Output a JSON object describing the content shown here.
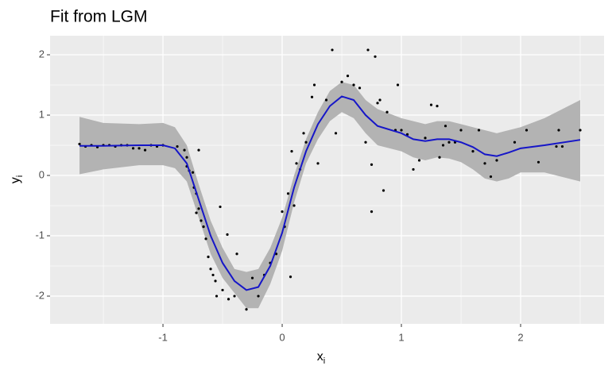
{
  "chart_data": {
    "type": "scatter-fit",
    "title": "Fit from LGM",
    "x_label": {
      "text": "x",
      "subscript": "i"
    },
    "y_label": {
      "text": "y",
      "subscript": "i"
    },
    "xlim": [
      -1.947,
      2.7
    ],
    "ylim": [
      -2.46,
      2.316
    ],
    "xticks": [
      -1,
      0,
      1,
      2
    ],
    "yticks": [
      -2,
      -1,
      0,
      1,
      2
    ],
    "grid": true,
    "points": {
      "color": "#000000",
      "x": [
        -1.7,
        -1.65,
        -1.6,
        -1.55,
        -1.5,
        -1.45,
        -1.4,
        -1.35,
        -1.3,
        -1.25,
        -1.2,
        -1.15,
        -1.1,
        -1.05,
        -1.0,
        -0.88,
        -0.82,
        -0.8,
        -0.8,
        -0.78,
        -0.75,
        -0.74,
        -0.72,
        -0.7,
        -0.72,
        -0.68,
        -0.7,
        -0.66,
        -0.64,
        -0.62,
        -0.6,
        -0.58,
        -0.56,
        -0.55,
        -0.52,
        -0.5,
        -0.46,
        -0.45,
        -0.4,
        -0.38,
        -0.3,
        -0.25,
        -0.2,
        -0.15,
        -0.1,
        -0.05,
        0,
        0.02,
        0.05,
        0.07,
        0.08,
        0.1,
        0.12,
        0.15,
        0.18,
        0.2,
        0.25,
        0.27,
        0.3,
        0.37,
        0.42,
        0.45,
        0.5,
        0.55,
        0.6,
        0.65,
        0.7,
        0.72,
        0.75,
        0.78,
        0.75,
        0.8,
        0.82,
        0.85,
        0.88,
        0.95,
        0.97,
        1.0,
        1.05,
        1.1,
        1.15,
        1.2,
        1.25,
        1.3,
        1.32,
        1.35,
        1.37,
        1.4,
        1.45,
        1.5,
        1.6,
        1.65,
        1.7,
        1.75,
        1.8,
        1.95,
        2.05,
        2.15,
        2.3,
        2.32,
        2.35,
        2.5
      ],
      "y": [
        0.52,
        0.48,
        0.5,
        0.47,
        0.5,
        0.5,
        0.48,
        0.5,
        0.5,
        0.45,
        0.45,
        0.42,
        0.5,
        0.48,
        0.5,
        0.48,
        0.42,
        0.3,
        0.15,
        0.08,
        0.05,
        -0.2,
        -0.3,
        -0.55,
        -0.62,
        -0.75,
        0.42,
        -0.85,
        -1.05,
        -1.35,
        -1.55,
        -1.65,
        -1.75,
        -2.0,
        -0.52,
        -1.9,
        -0.98,
        -2.05,
        -2.0,
        -1.3,
        -2.22,
        -1.7,
        -2.0,
        -1.65,
        -1.45,
        -1.3,
        -0.6,
        -0.85,
        -0.3,
        -1.68,
        0.4,
        -0.5,
        0.2,
        0.1,
        0.7,
        0.55,
        1.3,
        1.5,
        0.2,
        1.25,
        2.08,
        0.7,
        1.55,
        1.65,
        1.5,
        1.45,
        0.55,
        2.08,
        0.18,
        1.97,
        -0.6,
        1.2,
        1.25,
        -0.25,
        1.05,
        0.75,
        1.5,
        0.75,
        0.68,
        0.1,
        0.25,
        0.62,
        1.17,
        1.15,
        0.3,
        0.5,
        0.82,
        0.55,
        0.55,
        0.75,
        0.4,
        0.75,
        0.2,
        -0.02,
        0.25,
        0.55,
        0.75,
        0.22,
        0.48,
        0.75,
        0.48,
        0.75
      ]
    },
    "fit": {
      "color": "#1616c8",
      "band_color": "#b3b3b3",
      "x": [
        -1.7,
        -1.5,
        -1.2,
        -1.0,
        -0.9,
        -0.8,
        -0.7,
        -0.6,
        -0.5,
        -0.4,
        -0.3,
        -0.2,
        -0.1,
        0.0,
        0.1,
        0.2,
        0.3,
        0.4,
        0.5,
        0.6,
        0.7,
        0.8,
        1.0,
        1.1,
        1.2,
        1.3,
        1.4,
        1.5,
        1.6,
        1.7,
        1.8,
        1.9,
        2.0,
        2.2,
        2.5
      ],
      "y": [
        0.49,
        0.49,
        0.5,
        0.5,
        0.45,
        0.2,
        -0.4,
        -1.0,
        -1.45,
        -1.75,
        -1.9,
        -1.85,
        -1.5,
        -0.95,
        -0.2,
        0.4,
        0.85,
        1.15,
        1.31,
        1.25,
        1.0,
        0.82,
        0.7,
        0.6,
        0.57,
        0.6,
        0.6,
        0.55,
        0.47,
        0.35,
        0.32,
        0.38,
        0.45,
        0.5,
        0.59
      ],
      "upper": [
        0.97,
        0.87,
        0.85,
        0.87,
        0.8,
        0.5,
        -0.15,
        -0.75,
        -1.2,
        -1.55,
        -1.6,
        -1.55,
        -1.2,
        -0.7,
        0,
        0.6,
        1.05,
        1.4,
        1.55,
        1.5,
        1.25,
        1.1,
        0.95,
        0.9,
        0.85,
        0.9,
        0.9,
        0.85,
        0.8,
        0.75,
        0.7,
        0.75,
        0.8,
        0.95,
        1.25
      ],
      "lower": [
        0.02,
        0.1,
        0.17,
        0.17,
        0.12,
        -0.1,
        -0.7,
        -1.3,
        -1.7,
        -1.95,
        -2.2,
        -2.2,
        -1.8,
        -1.25,
        -0.45,
        0.2,
        0.6,
        0.9,
        1.05,
        0.95,
        0.7,
        0.5,
        0.4,
        0.3,
        0.25,
        0.3,
        0.28,
        0.22,
        0.1,
        -0.05,
        -0.1,
        -0.05,
        0.05,
        0.05,
        -0.1
      ]
    }
  }
}
